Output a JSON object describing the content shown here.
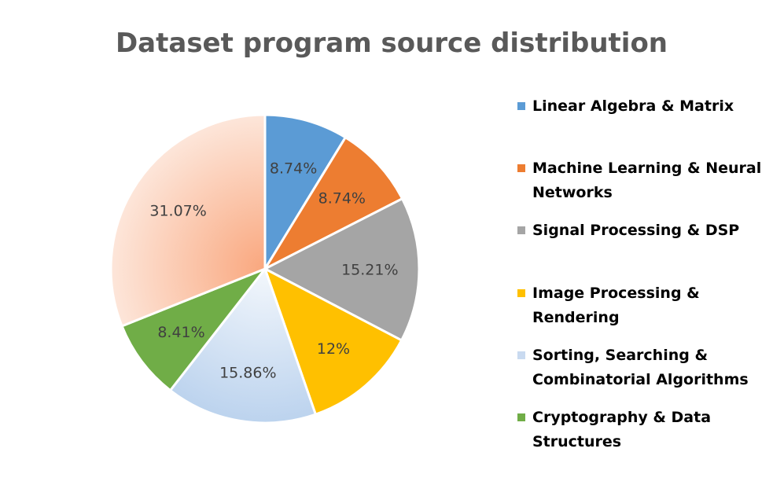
{
  "chart_data": {
    "type": "pie",
    "title": "Dataset program source distribution",
    "slices": [
      {
        "label": "Linear Algebra & Matrix",
        "legend_lines": [
          "Linear Algebra & Matrix"
        ],
        "value": 8.74,
        "display": "8.74%",
        "color": "#5b9bd5"
      },
      {
        "label": "Machine Learning & Neural Networks",
        "legend_lines": [
          "Machine Learning & Neural",
          "Networks"
        ],
        "value": 8.74,
        "display": "8.74%",
        "color": "#ed7d31"
      },
      {
        "label": "Signal Processing & DSP",
        "legend_lines": [
          "Signal Processing & DSP"
        ],
        "value": 15.21,
        "display": "15.21%",
        "color": "#a5a5a5"
      },
      {
        "label": "Image Processing & Rendering",
        "legend_lines": [
          "Image Processing &",
          "Rendering"
        ],
        "value": 12,
        "display": "12%",
        "color": "#ffc000"
      },
      {
        "label": "Sorting, Searching & Combinatorial Algorithms",
        "legend_lines": [
          "Sorting, Searching &",
          "Combinatorial Algorithms"
        ],
        "value": 15.86,
        "display": "15.86%",
        "color": "#c9daf0"
      },
      {
        "label": "Cryptography & Data Structures",
        "legend_lines": [
          "Cryptography & Data",
          "Structures"
        ],
        "value": 8.41,
        "display": "8.41%",
        "color": "#70ad47"
      },
      {
        "label": "",
        "legend_lines": [],
        "value": 31.07,
        "display": "31.07%",
        "color": "#fbb896"
      }
    ],
    "legend_position": "right"
  }
}
